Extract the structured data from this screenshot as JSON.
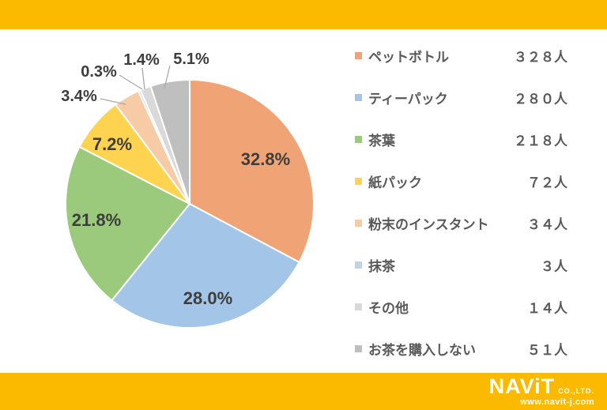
{
  "theme": {
    "frame_color": "#FBBA00",
    "background": "#FFFFFF",
    "percent_label_color": "#3D3D3D",
    "legend_text_color": "#595959",
    "leader_line_color": "#A9A9A9",
    "slice_border_color": "#FFFFFF"
  },
  "chart_data": {
    "type": "pie",
    "title": "",
    "unit_suffix": "人",
    "direction": "clockwise",
    "start_angle_deg": 0,
    "legend_position": "right",
    "slices": [
      {
        "label": "ペットボトル",
        "count": 328,
        "count_text": "３２８人",
        "percent": 32.8,
        "percent_label": "32.8%",
        "color": "#F0A475"
      },
      {
        "label": "ティーパック",
        "count": 280,
        "count_text": "２８０人",
        "percent": 28.0,
        "percent_label": "28.0%",
        "color": "#A2C5E8"
      },
      {
        "label": "茶葉",
        "count": 218,
        "count_text": "２１８人",
        "percent": 21.8,
        "percent_label": "21.8%",
        "color": "#9BCA7D"
      },
      {
        "label": "紙パック",
        "count": 72,
        "count_text": "７２人",
        "percent": 7.2,
        "percent_label": "7.2%",
        "color": "#FED34F"
      },
      {
        "label": "粉末のインスタント",
        "count": 34,
        "count_text": "３４人",
        "percent": 3.4,
        "percent_label": "3.4%",
        "color": "#F6CBA5"
      },
      {
        "label": "抹茶",
        "count": 3,
        "count_text": "３人",
        "percent": 0.3,
        "percent_label": "0.3%",
        "color": "#BFD4E6"
      },
      {
        "label": "その他",
        "count": 14,
        "count_text": "１４人",
        "percent": 1.4,
        "percent_label": "1.4%",
        "color": "#D9D9D9"
      },
      {
        "label": "お茶を購入しない",
        "count": 51,
        "count_text": "５１人",
        "percent": 5.1,
        "percent_label": "5.1%",
        "color": "#BFBFBF"
      }
    ]
  },
  "footer": {
    "logo_text": "NAViT",
    "logo_suffix": "CO.,LTD.",
    "website": "www.navit-j.com"
  }
}
